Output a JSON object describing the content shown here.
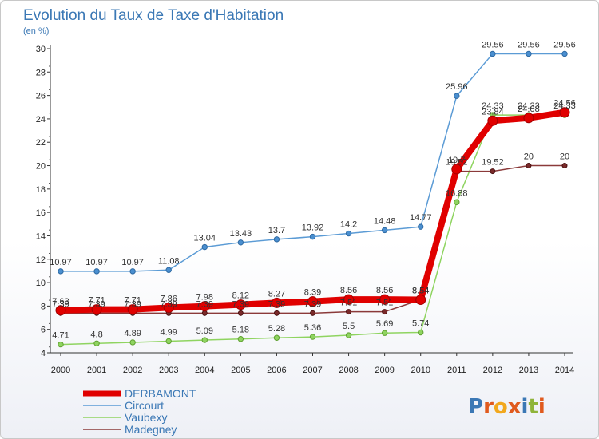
{
  "chart_data": {
    "type": "line",
    "title": "Evolution du Taux de Taxe d'Habitation",
    "subtitle": "(en %)",
    "x": [
      "2000",
      "2001",
      "2002",
      "2003",
      "2004",
      "2005",
      "2006",
      "2007",
      "2008",
      "2009",
      "2010",
      "2011",
      "2012",
      "2013",
      "2014"
    ],
    "ylim": [
      4,
      30
    ],
    "yticks": [
      4,
      6,
      8,
      10,
      12,
      14,
      16,
      18,
      20,
      22,
      24,
      26,
      28,
      30
    ],
    "grid": false,
    "legend_position": "bottom-left",
    "series": [
      {
        "name": "DERBAMONT",
        "color": "#e00000",
        "values": [
          7.63,
          7.71,
          7.71,
          7.86,
          7.98,
          8.12,
          8.27,
          8.39,
          8.56,
          8.56,
          8.54,
          19.7,
          23.84,
          24.08,
          24.56
        ]
      },
      {
        "name": "Circourt",
        "color": "#5b9bd5",
        "values": [
          10.97,
          10.97,
          10.97,
          11.08,
          13.04,
          13.43,
          13.7,
          13.92,
          14.2,
          14.48,
          14.77,
          25.96,
          29.56,
          29.56,
          29.56
        ]
      },
      {
        "name": "Vaubexy",
        "color": "#8fd460",
        "values": [
          4.71,
          4.8,
          4.89,
          4.99,
          5.09,
          5.18,
          5.28,
          5.36,
          5.5,
          5.69,
          5.74,
          16.88,
          24.33,
          24.33,
          24.33
        ]
      },
      {
        "name": "Madegney",
        "color": "#8b3a3a",
        "values": [
          7.39,
          7.39,
          7.39,
          7.39,
          7.39,
          7.39,
          7.39,
          7.39,
          7.51,
          7.51,
          8.54,
          19.52,
          19.52,
          20,
          20
        ]
      }
    ]
  },
  "logo": {
    "text": "Proxiti"
  }
}
